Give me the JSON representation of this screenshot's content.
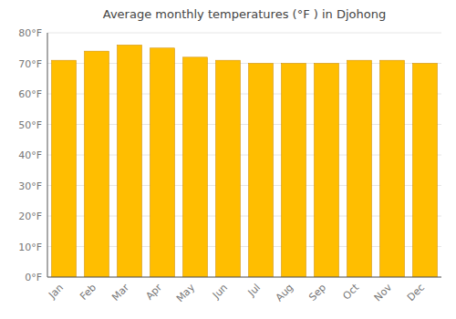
{
  "chart_data": {
    "type": "bar",
    "title": "Average monthly temperatures (°F ) in Djohong",
    "categories": [
      "Jan",
      "Feb",
      "Mar",
      "Apr",
      "May",
      "Jun",
      "Jul",
      "Aug",
      "Sep",
      "Oct",
      "Nov",
      "Dec"
    ],
    "values": [
      71,
      74,
      76,
      75,
      72,
      71,
      70,
      70,
      70,
      71,
      71,
      70
    ],
    "color": "#FFBE00",
    "ylim": [
      0,
      80
    ],
    "yticks": [
      {
        "value": 0,
        "label": "0°F"
      },
      {
        "value": 10,
        "label": "10°F"
      },
      {
        "value": 20,
        "label": "20°F"
      },
      {
        "value": 30,
        "label": "30°F"
      },
      {
        "value": 40,
        "label": "40°F"
      },
      {
        "value": 50,
        "label": "50°F"
      },
      {
        "value": 60,
        "label": "60°F"
      },
      {
        "value": 70,
        "label": "70°F"
      },
      {
        "value": 80,
        "label": "80°F"
      }
    ],
    "grid": true
  }
}
